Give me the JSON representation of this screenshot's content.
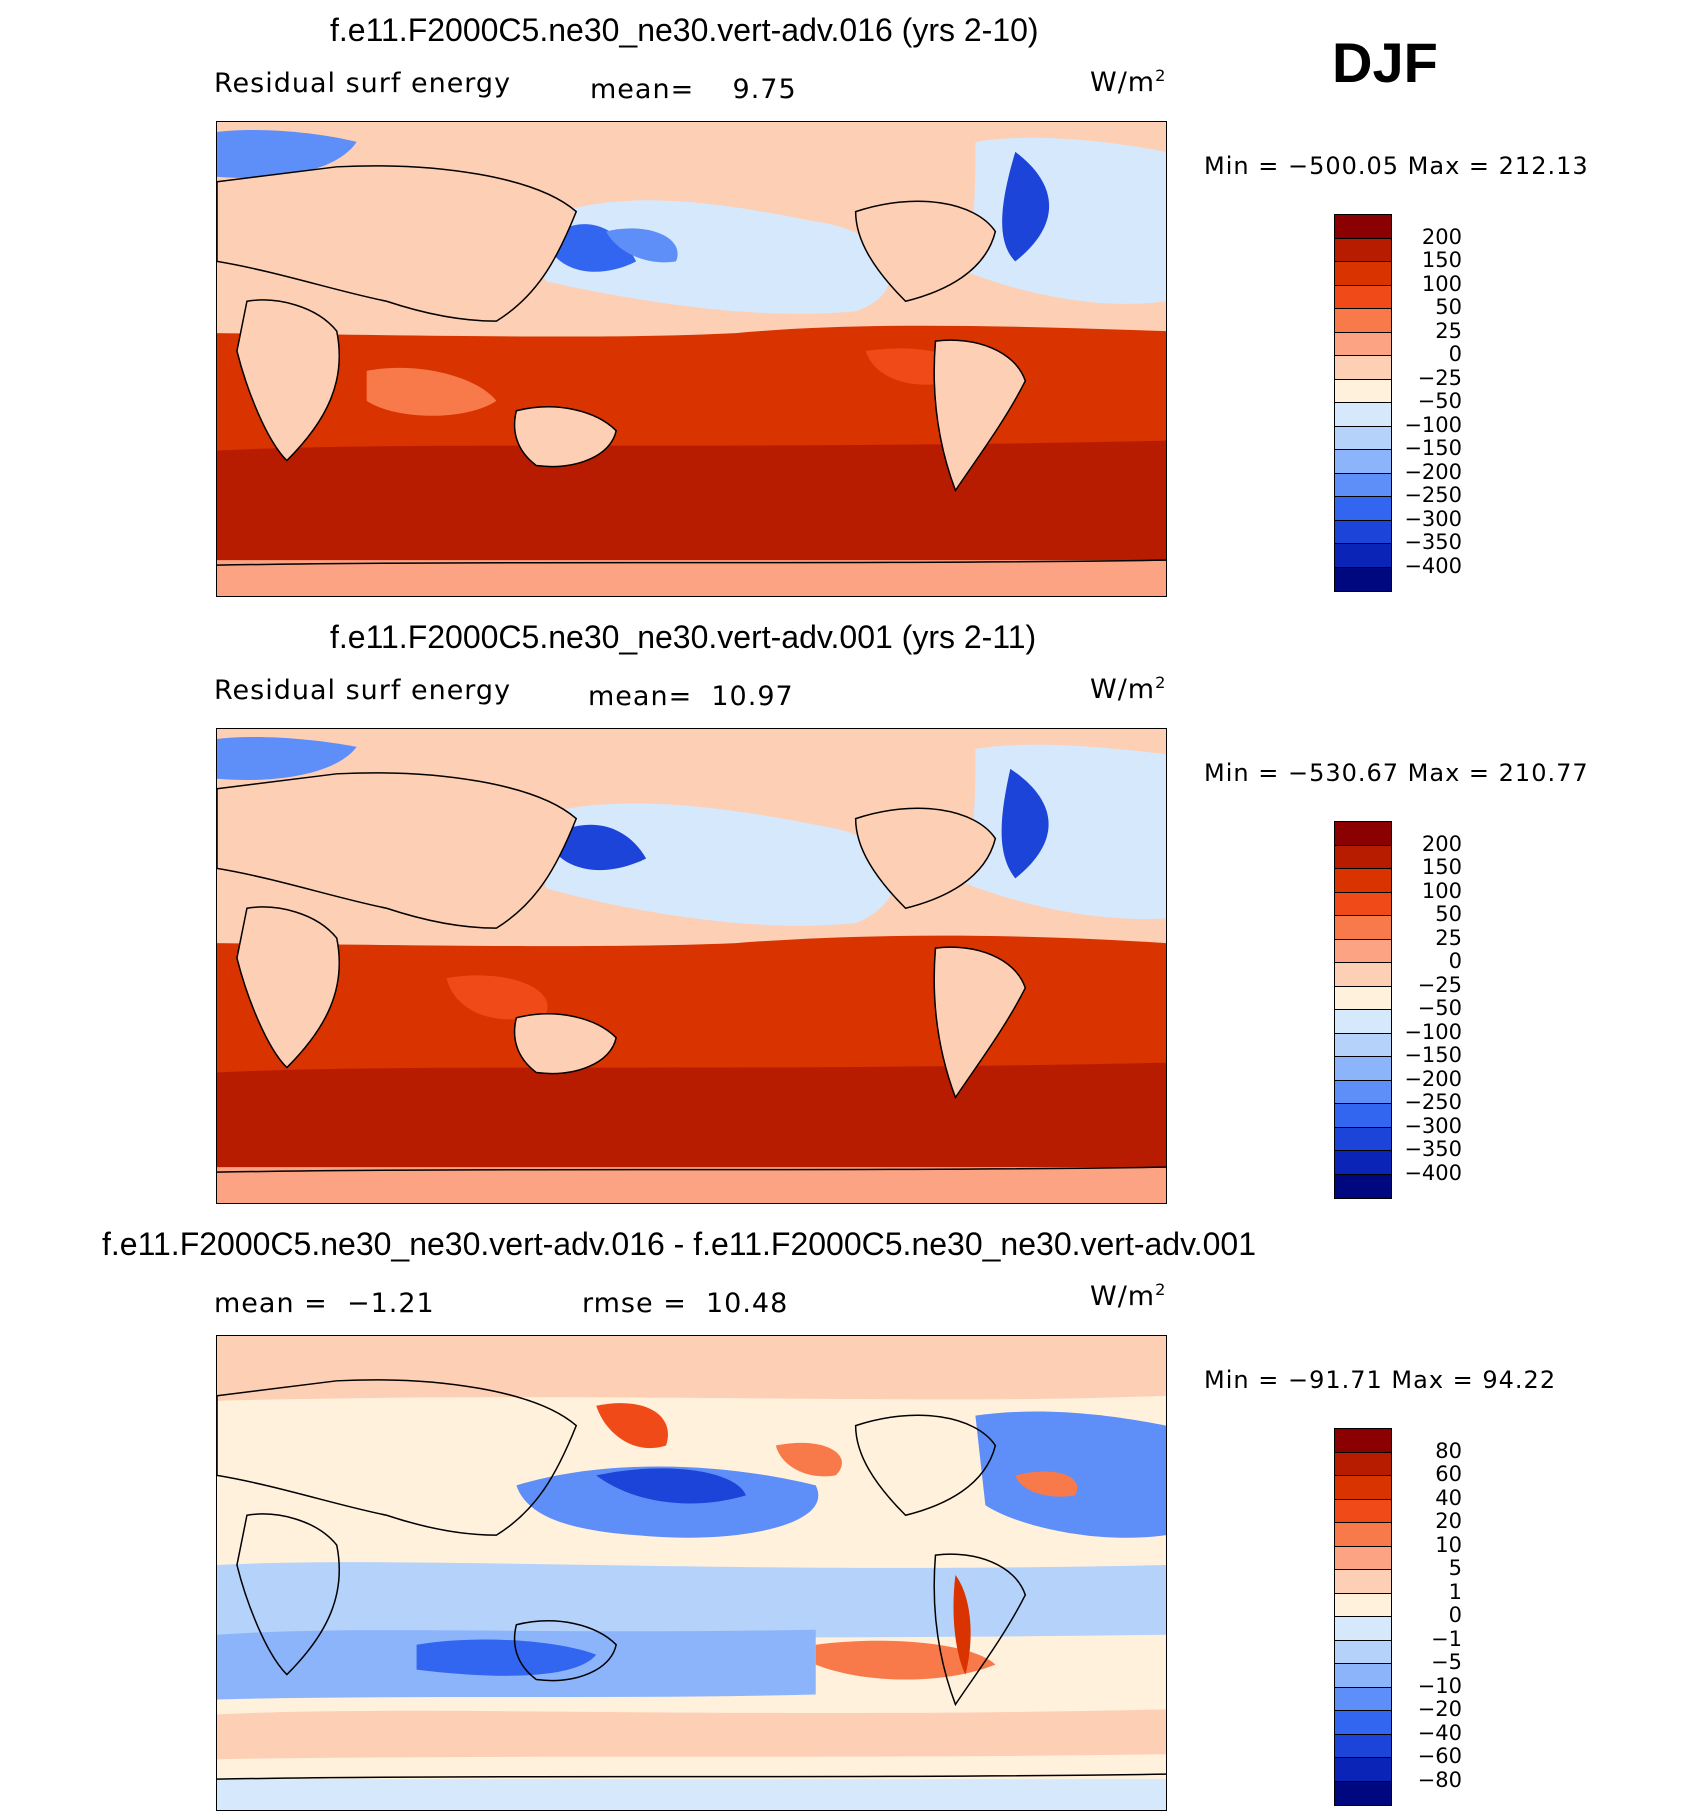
{
  "season": "DJF",
  "unit": "W/m",
  "unit_exp": "2",
  "panels": [
    {
      "title": "f.e11.F2000C5.ne30_ne30.vert-adv.016 (yrs 2-10)",
      "left_label": "Residual surf energy",
      "stat_label": "mean=",
      "stat_value": "9.75",
      "minmax": "Min = −500.05  Max = 212.13"
    },
    {
      "title": "f.e11.F2000C5.ne30_ne30.vert-adv.001 (yrs 2-11)",
      "left_label": "Residual surf energy",
      "stat_label": "mean=",
      "stat_value": "10.97",
      "minmax": "Min = −530.67  Max = 210.77"
    },
    {
      "title": "f.e11.F2000C5.ne30_ne30.vert-adv.016 - f.e11.F2000C5.ne30_ne30.vert-adv.001",
      "left_label": "mean =",
      "left_value": "−1.21",
      "stat_label": "rmse =",
      "stat_value": "10.48",
      "minmax": "Min = −91.71  Max =   94.22"
    }
  ],
  "colorbars": {
    "field": {
      "labels": [
        "200",
        "150",
        "100",
        "50",
        "25",
        "0",
        "−25",
        "−50",
        "−100",
        "−150",
        "−200",
        "−250",
        "−300",
        "−350",
        "−400"
      ],
      "colors": [
        "#8b0000",
        "#b81c00",
        "#d93300",
        "#f04a18",
        "#f87a4a",
        "#fba382",
        "#fdcfb5",
        "#fff1dc",
        "#d6e8fb",
        "#b4d2fa",
        "#8cb4fb",
        "#5e8ef7",
        "#3366f0",
        "#1c44d8",
        "#0a24b8",
        "#000880"
      ]
    },
    "diff": {
      "labels": [
        "80",
        "60",
        "40",
        "20",
        "10",
        "5",
        "1",
        "0",
        "−1",
        "−5",
        "−10",
        "−20",
        "−40",
        "−60",
        "−80"
      ],
      "colors": [
        "#8b0000",
        "#b81c00",
        "#d93300",
        "#f04a18",
        "#f87a4a",
        "#fba382",
        "#fdcfb5",
        "#fff1dc",
        "#d6e8fb",
        "#b4d2fa",
        "#8cb4fb",
        "#5e8ef7",
        "#3366f0",
        "#1c44d8",
        "#0a24b8",
        "#000880"
      ]
    }
  }
}
